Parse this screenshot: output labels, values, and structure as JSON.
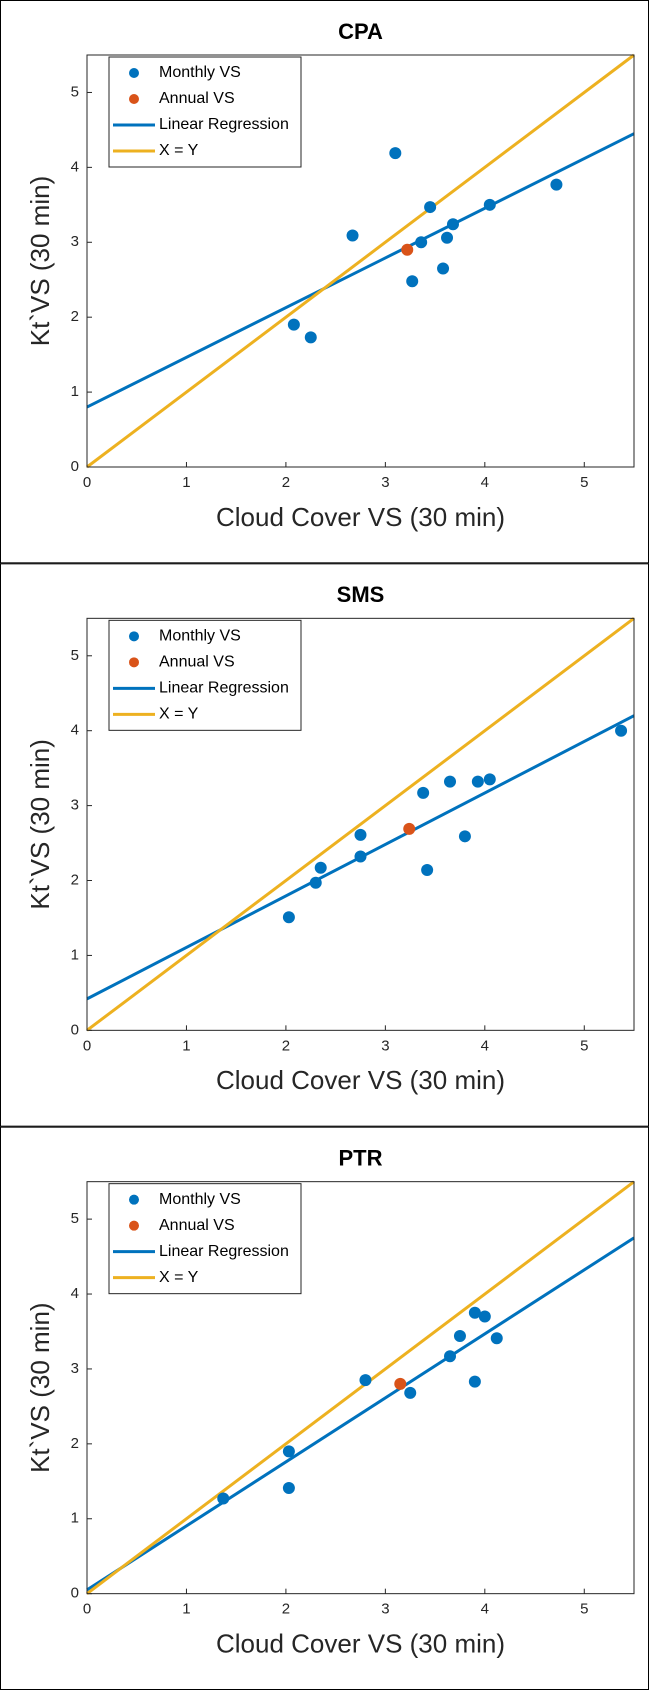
{
  "chart_data": [
    {
      "type": "scatter",
      "title": "CPA",
      "xlabel": "Cloud Cover VS (30 min)",
      "ylabel": "Kt`VS (30 min)",
      "xlim": [
        0,
        5.5
      ],
      "ylim": [
        0,
        5.5
      ],
      "xticks": [
        0,
        1,
        2,
        3,
        4,
        5
      ],
      "yticks": [
        0,
        1,
        2,
        3,
        4,
        5
      ],
      "legend": "upper left",
      "series": [
        {
          "name": "Monthly VS",
          "type": "scatter",
          "color": "#0072bd",
          "x": [
            2.08,
            2.25,
            2.67,
            3.1,
            3.27,
            3.36,
            3.45,
            3.58,
            3.62,
            3.68,
            4.05,
            4.72
          ],
          "values": [
            1.9,
            1.73,
            3.09,
            4.19,
            2.48,
            3.0,
            3.47,
            2.65,
            3.06,
            3.24,
            3.5,
            3.77
          ]
        },
        {
          "name": "Annual VS",
          "type": "scatter",
          "color": "#d95319",
          "x": [
            3.22
          ],
          "values": [
            2.9
          ]
        },
        {
          "name": "Linear Regression",
          "type": "line",
          "color": "#0072bd",
          "x": [
            0,
            5.5
          ],
          "values": [
            0.8,
            4.45
          ]
        },
        {
          "name": "X = Y",
          "type": "line",
          "color": "#edb120",
          "x": [
            0,
            5.5
          ],
          "values": [
            0,
            5.5
          ]
        }
      ]
    },
    {
      "type": "scatter",
      "title": "SMS",
      "xlabel": "Cloud Cover VS (30 min)",
      "ylabel": "Kt`VS (30 min)",
      "xlim": [
        0,
        5.5
      ],
      "ylim": [
        0,
        5.5
      ],
      "xticks": [
        0,
        1,
        2,
        3,
        4,
        5
      ],
      "yticks": [
        0,
        1,
        2,
        3,
        4,
        5
      ],
      "legend": "upper left",
      "series": [
        {
          "name": "Monthly VS",
          "type": "scatter",
          "color": "#0072bd",
          "x": [
            2.03,
            2.3,
            2.35,
            2.75,
            2.75,
            3.38,
            3.42,
            3.65,
            3.8,
            3.93,
            4.05,
            5.37
          ],
          "values": [
            1.51,
            1.97,
            2.17,
            2.61,
            2.32,
            3.17,
            2.14,
            3.32,
            2.59,
            3.32,
            3.35,
            4.0
          ]
        },
        {
          "name": "Annual VS",
          "type": "scatter",
          "color": "#d95319",
          "x": [
            3.24
          ],
          "values": [
            2.69
          ]
        },
        {
          "name": "Linear Regression",
          "type": "line",
          "color": "#0072bd",
          "x": [
            0,
            5.5
          ],
          "values": [
            0.42,
            4.2
          ]
        },
        {
          "name": "X = Y",
          "type": "line",
          "color": "#edb120",
          "x": [
            0,
            5.5
          ],
          "values": [
            0,
            5.5
          ]
        }
      ]
    },
    {
      "type": "scatter",
      "title": "PTR",
      "xlabel": "Cloud Cover VS (30 min)",
      "ylabel": "Kt`VS (30 min)",
      "xlim": [
        0,
        5.5
      ],
      "ylim": [
        0,
        5.5
      ],
      "xticks": [
        0,
        1,
        2,
        3,
        4,
        5
      ],
      "yticks": [
        0,
        1,
        2,
        3,
        4,
        5
      ],
      "legend": "upper left",
      "series": [
        {
          "name": "Monthly VS",
          "type": "scatter",
          "color": "#0072bd",
          "x": [
            1.37,
            2.03,
            2.03,
            2.8,
            3.25,
            3.65,
            3.75,
            3.9,
            3.9,
            4.0,
            4.12
          ],
          "values": [
            1.27,
            1.41,
            1.9,
            2.85,
            2.68,
            3.17,
            3.44,
            2.83,
            3.75,
            3.7,
            3.41
          ]
        },
        {
          "name": "Annual VS",
          "type": "scatter",
          "color": "#d95319",
          "x": [
            3.15
          ],
          "values": [
            2.8
          ]
        },
        {
          "name": "Linear Regression",
          "type": "line",
          "color": "#0072bd",
          "x": [
            0,
            5.5
          ],
          "values": [
            0.05,
            4.75
          ]
        },
        {
          "name": "X = Y",
          "type": "line",
          "color": "#edb120",
          "x": [
            0,
            5.5
          ],
          "values": [
            0,
            5.5
          ]
        }
      ]
    }
  ]
}
